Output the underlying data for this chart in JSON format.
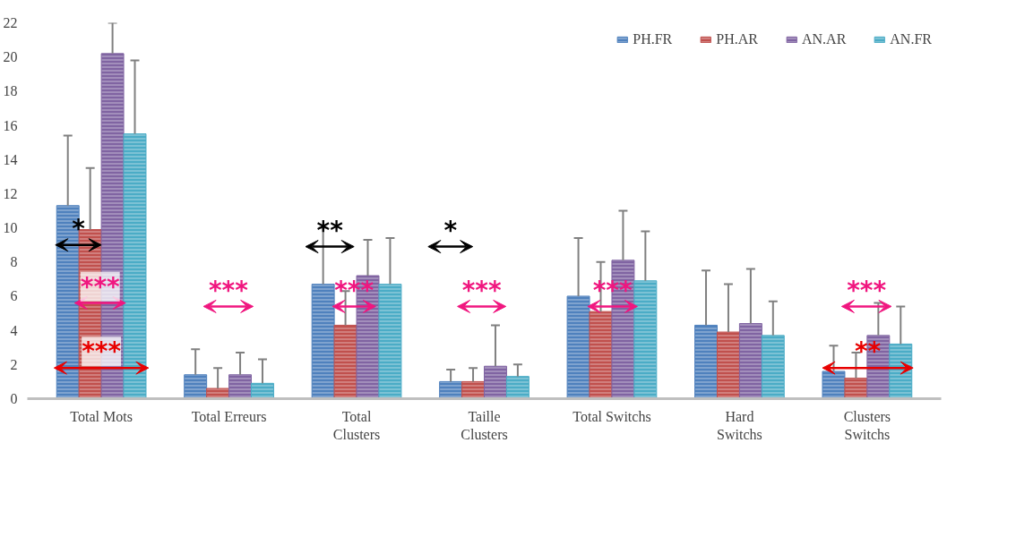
{
  "chart_data": {
    "type": "bar",
    "categories": [
      "Total Mots",
      "Total Erreurs",
      "Total Clusters",
      "Taille Clusters",
      "Total Switchs",
      "Hard Switchs",
      "Clusters Switchs"
    ],
    "series": [
      {
        "name": "PH.FR",
        "color": "#4f81bd",
        "values": [
          11.3,
          1.4,
          6.7,
          1.0,
          6.0,
          4.3,
          1.6
        ],
        "errors": [
          [
            11.3,
            15.4
          ],
          [
            1.4,
            2.9
          ],
          [
            6.7,
            10.0
          ],
          [
            1.0,
            1.7
          ],
          [
            6.0,
            9.4
          ],
          [
            4.3,
            7.5
          ],
          [
            1.6,
            3.1
          ]
        ]
      },
      {
        "name": "PH.AR",
        "color": "#c0504d",
        "values": [
          9.9,
          0.6,
          4.3,
          1.0,
          5.1,
          3.9,
          1.2
        ],
        "errors": [
          [
            9.9,
            13.5
          ],
          [
            0.6,
            1.8
          ],
          [
            4.3,
            6.3
          ],
          [
            1.0,
            1.8
          ],
          [
            5.1,
            8.0
          ],
          [
            3.9,
            6.7
          ],
          [
            1.2,
            2.7
          ]
        ]
      },
      {
        "name": "AN.AR",
        "color": "#8064a2",
        "values": [
          20.2,
          1.4,
          7.2,
          1.9,
          8.1,
          4.4,
          3.7
        ],
        "errors": [
          [
            20.2,
            22.0
          ],
          [
            1.4,
            2.7
          ],
          [
            7.2,
            9.3
          ],
          [
            1.9,
            4.3
          ],
          [
            8.1,
            11.0
          ],
          [
            4.4,
            7.6
          ],
          [
            3.7,
            5.6
          ]
        ]
      },
      {
        "name": "AN.FR",
        "color": "#4bacc6",
        "values": [
          15.5,
          0.9,
          6.7,
          1.3,
          6.9,
          3.7,
          3.2
        ],
        "errors": [
          [
            15.5,
            19.8
          ],
          [
            0.9,
            2.3
          ],
          [
            6.7,
            9.4
          ],
          [
            1.3,
            2.0
          ],
          [
            6.9,
            9.8
          ],
          [
            3.7,
            5.7
          ],
          [
            3.2,
            5.4
          ]
        ]
      }
    ],
    "ylim": [
      0,
      22
    ],
    "yticks": [
      0,
      2,
      4,
      6,
      8,
      10,
      12,
      14,
      16,
      18,
      20,
      22
    ],
    "grid": false,
    "legend": "top right",
    "annotations": [
      "*",
      "***",
      "***",
      "***",
      "**",
      "***",
      "*",
      "***",
      "***",
      "***",
      "**"
    ]
  }
}
